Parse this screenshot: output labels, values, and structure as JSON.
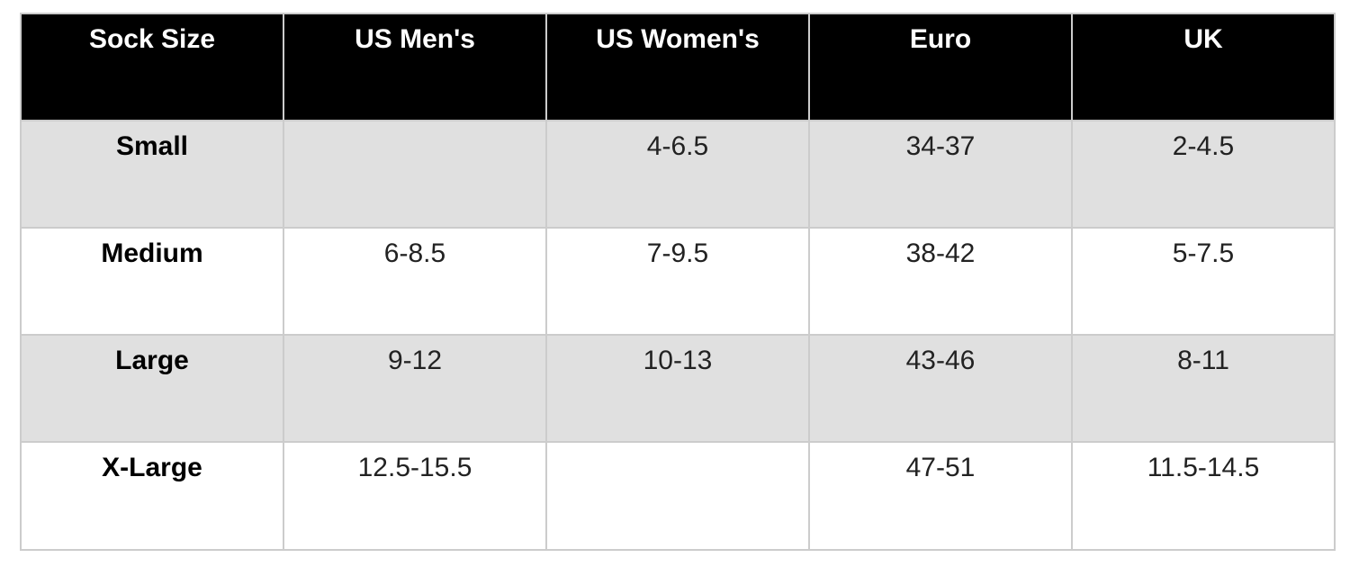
{
  "chart_data": {
    "type": "table",
    "columns": [
      "Sock Size",
      "US Men's",
      "US Women's",
      "Euro",
      "UK"
    ],
    "rows": [
      [
        "Small",
        "",
        "4-6.5",
        "34-37",
        "2-4.5"
      ],
      [
        "Medium",
        "6-8.5",
        "7-9.5",
        "38-42",
        "5-7.5"
      ],
      [
        "Large",
        "9-12",
        "10-13",
        "43-46",
        "8-11"
      ],
      [
        "X-Large",
        "12.5-15.5",
        "",
        "47-51",
        "11.5-14.5"
      ]
    ],
    "layout": {
      "zebra_striping": true,
      "header_position": "top",
      "cell_alignment": "center"
    }
  },
  "colors": {
    "header_bg": "#000000",
    "header_text": "#ffffff",
    "alt_row_bg": "#e0e0e0",
    "row_bg": "#ffffff",
    "border": "#cccccc",
    "cell_text": "#222222",
    "label_text": "#000000",
    "page_bg": "#ffffff"
  }
}
